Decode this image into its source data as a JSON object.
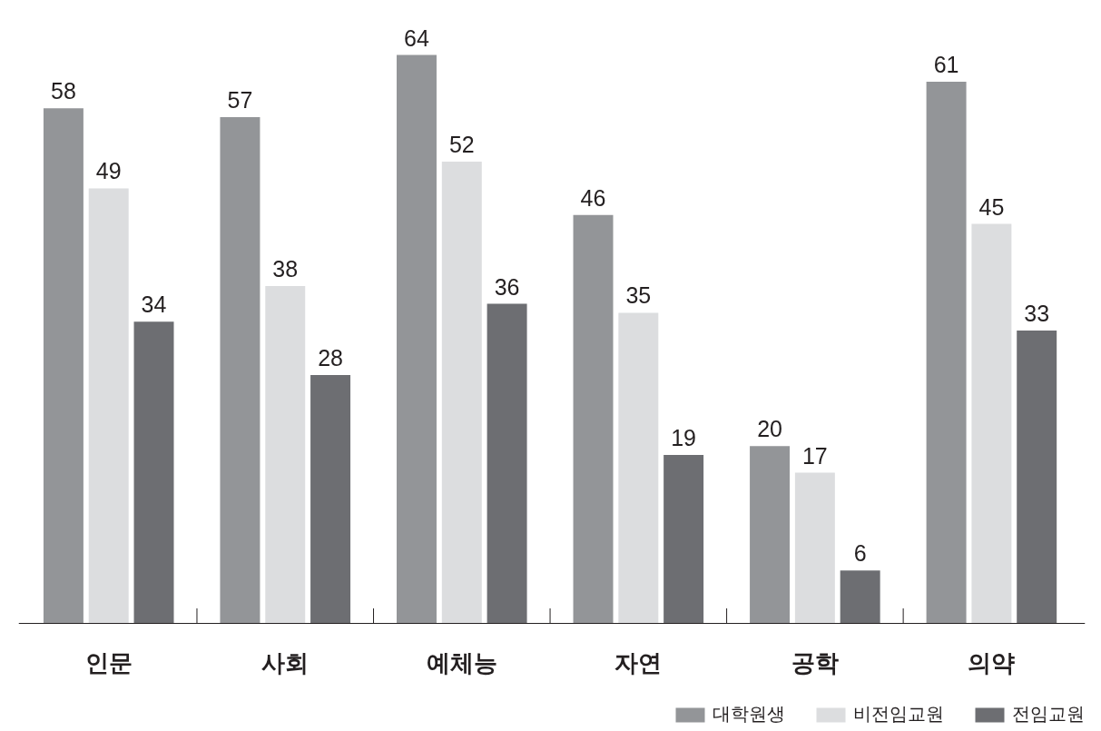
{
  "chart_data": {
    "type": "bar",
    "categories": [
      "인문",
      "사회",
      "예체능",
      "자연",
      "공학",
      "의약"
    ],
    "series": [
      {
        "name": "대학원생",
        "color": "#939598",
        "values": [
          58,
          57,
          64,
          46,
          20,
          61
        ]
      },
      {
        "name": "비전임교원",
        "color": "#dcdddf",
        "values": [
          49,
          38,
          52,
          35,
          17,
          45
        ]
      },
      {
        "name": "전임교원",
        "color": "#6d6e72",
        "values": [
          34,
          28,
          36,
          19,
          6,
          33
        ]
      }
    ],
    "data_labels": true,
    "grid": false,
    "legend": "bottom right"
  }
}
